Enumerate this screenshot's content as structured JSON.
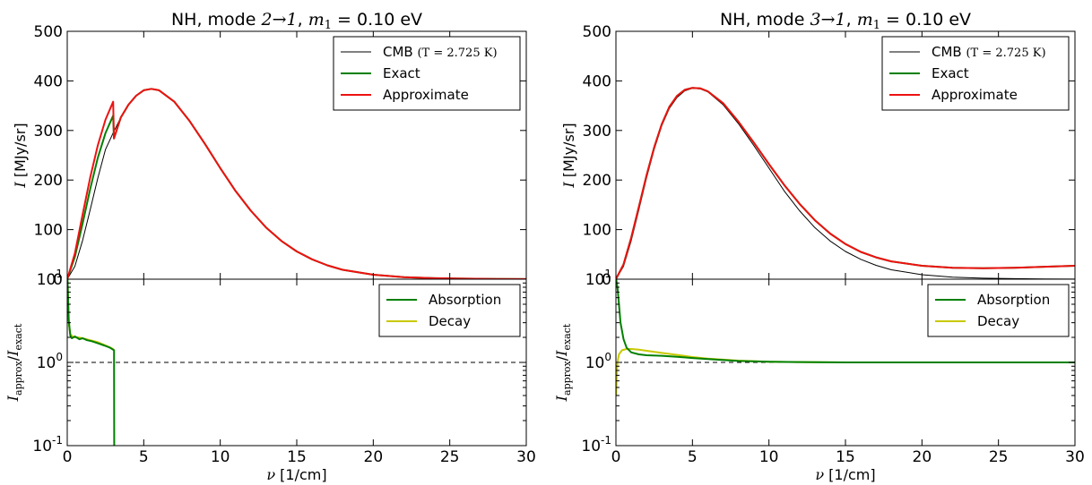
{
  "chart_data": [
    {
      "type": "line",
      "title": "NH, mode 2→1, m1 = 0.10 eV",
      "title_parts": {
        "prefix": "NH, mode ",
        "transition": "2→1",
        "sep": ", ",
        "mass_sym": "m",
        "mass_sub": "1",
        "mass_val": " = 0.10 eV"
      },
      "xlabel": "ν [1/cm]",
      "xlabel_parts": {
        "sym": "ν",
        "unit": " [1/cm]"
      },
      "ylabel": "I [MJy/sr]",
      "ylabel_parts": {
        "sym": "I",
        "unit": " [MJy/sr]"
      },
      "xlim": [
        0,
        30
      ],
      "ylim": [
        0,
        500
      ],
      "xticks": [
        0,
        5,
        10,
        15,
        20,
        25,
        30
      ],
      "yticks": [
        0,
        100,
        200,
        300,
        400,
        500
      ],
      "legend_loc": "top-right",
      "legend": [
        {
          "label": "CMB (T=2.725K)",
          "text": "CMB ",
          "math": "(T = 2.725 K)",
          "color": "#000000"
        },
        {
          "label": "Exact",
          "text": "Exact",
          "math": "",
          "color": "#008000"
        },
        {
          "label": "Approximate",
          "text": "Approximate",
          "math": "",
          "color": "#ee1111"
        }
      ],
      "series": [
        {
          "name": "CMB (T=2.725K)",
          "color": "#000000",
          "x": [
            0,
            0.5,
            1,
            1.5,
            2,
            2.5,
            3,
            3.5,
            4,
            4.5,
            5,
            5.5,
            6,
            7,
            8,
            9,
            10,
            11,
            12,
            13,
            14,
            15,
            16,
            17,
            18,
            20,
            22,
            24,
            26,
            28,
            30
          ],
          "y": [
            0,
            26,
            78,
            140,
            204,
            262,
            295,
            326,
            352,
            370,
            381,
            384,
            381,
            358,
            319,
            273,
            224,
            178,
            138,
            104,
            77,
            56,
            40,
            28,
            19,
            9,
            4,
            2,
            1,
            0.4,
            0.2
          ]
        },
        {
          "name": "Exact",
          "color": "#008000",
          "x": [
            0,
            0.5,
            1,
            1.5,
            2,
            2.5,
            3,
            3.05,
            3.5,
            4,
            4.5,
            5,
            5.5,
            6,
            7,
            8,
            9,
            10,
            11,
            12,
            13,
            14,
            15,
            16,
            17,
            18,
            20,
            22,
            24,
            26,
            28,
            30
          ],
          "y": [
            0,
            45,
            112,
            182,
            245,
            295,
            330,
            284,
            326,
            352,
            370,
            381,
            384,
            381,
            358,
            319,
            273,
            224,
            178,
            138,
            104,
            77,
            56,
            40,
            28,
            19,
            9,
            4,
            2,
            1,
            0.4,
            0.2
          ]
        },
        {
          "name": "Approximate",
          "color": "#ee1111",
          "x": [
            0,
            0.5,
            1,
            1.5,
            2,
            2.5,
            3,
            3.05,
            3.5,
            4,
            4.5,
            5,
            5.5,
            6,
            7,
            8,
            9,
            10,
            11,
            12,
            13,
            14,
            15,
            16,
            17,
            18,
            20,
            22,
            24,
            26,
            28,
            30
          ],
          "y": [
            0,
            52,
            130,
            205,
            270,
            322,
            358,
            284,
            326,
            352,
            370,
            381,
            384,
            381,
            358,
            319,
            273,
            224,
            178,
            138,
            104,
            77,
            56,
            40,
            28,
            19,
            9,
            4,
            2,
            1,
            0.4,
            0.2
          ]
        }
      ],
      "reference_line": {
        "y": 0,
        "style": "dashed"
      }
    },
    {
      "type": "line",
      "ylabel": "I_approx/I_exact",
      "ylabel_parts": {
        "sym": "I",
        "sub_num": "approx",
        "slash": "/",
        "sub_den": "exact"
      },
      "xlabel": "ν [1/cm]",
      "xlabel_parts": {
        "sym": "ν",
        "unit": " [1/cm]"
      },
      "xlim": [
        0,
        30
      ],
      "ylim": [
        0.1,
        10
      ],
      "yscale": "log",
      "xticks": [
        0,
        5,
        10,
        15,
        20,
        25,
        30
      ],
      "yticks": [
        {
          "value": 0.1,
          "base": "10",
          "exp": "-1"
        },
        {
          "value": 1,
          "base": "10",
          "exp": "0"
        },
        {
          "value": 10,
          "base": "10",
          "exp": "1"
        }
      ],
      "legend_loc": "top-right",
      "legend": [
        {
          "label": "Absorption",
          "color": "#008000"
        },
        {
          "label": "Decay",
          "color": "#c8c800"
        }
      ],
      "series": [
        {
          "name": "Decay",
          "color": "#c8c800",
          "x": [
            0.02,
            0.1,
            0.2,
            0.4,
            0.7,
            1,
            1.5,
            2,
            2.5,
            3,
            3.05
          ],
          "y": [
            10,
            3.0,
            2.2,
            2.0,
            2.0,
            1.95,
            1.85,
            1.75,
            1.6,
            1.45,
            1.4
          ]
        },
        {
          "name": "Absorption",
          "color": "#008000",
          "x": [
            0.02,
            0.1,
            0.2,
            0.3,
            0.5,
            0.8,
            1,
            1.3,
            1.6,
            2,
            2.4,
            2.8,
            3,
            3.05,
            3.06,
            3.07
          ],
          "y": [
            10,
            3.2,
            2.1,
            1.95,
            2.05,
            1.9,
            1.95,
            1.85,
            1.8,
            1.7,
            1.6,
            1.5,
            1.42,
            1.4,
            1.4,
            0.1
          ]
        }
      ],
      "reference_line": {
        "y": 1,
        "style": "dashed"
      }
    },
    {
      "type": "line",
      "title": "NH, mode 3→1, m1 = 0.10 eV",
      "title_parts": {
        "prefix": "NH, mode ",
        "transition": "3→1",
        "sep": ", ",
        "mass_sym": "m",
        "mass_sub": "1",
        "mass_val": " = 0.10 eV"
      },
      "xlabel": "ν [1/cm]",
      "xlabel_parts": {
        "sym": "ν",
        "unit": " [1/cm]"
      },
      "ylabel": "I [MJy/sr]",
      "ylabel_parts": {
        "sym": "I",
        "unit": " [MJy/sr]"
      },
      "xlim": [
        0,
        30
      ],
      "ylim": [
        0,
        500
      ],
      "xticks": [
        0,
        5,
        10,
        15,
        20,
        25,
        30
      ],
      "yticks": [
        0,
        100,
        200,
        300,
        400,
        500
      ],
      "legend_loc": "top-right",
      "legend": [
        {
          "label": "CMB (T=2.725K)",
          "text": "CMB ",
          "math": "(T = 2.725 K)",
          "color": "#000000"
        },
        {
          "label": "Exact",
          "text": "Exact",
          "math": "",
          "color": "#008000"
        },
        {
          "label": "Approximate",
          "text": "Approximate",
          "math": "",
          "color": "#ee1111"
        }
      ],
      "series": [
        {
          "name": "CMB (T=2.725K)",
          "color": "#000000",
          "x": [
            0,
            0.5,
            1,
            1.5,
            2,
            2.5,
            3,
            3.5,
            4,
            4.5,
            5,
            5.5,
            6,
            7,
            8,
            9,
            10,
            11,
            12,
            13,
            14,
            15,
            16,
            17,
            18,
            20,
            22,
            24,
            26,
            28,
            30
          ],
          "y": [
            0,
            26,
            78,
            140,
            204,
            262,
            310,
            345,
            367,
            380,
            385,
            384,
            378,
            352,
            314,
            270,
            224,
            178,
            138,
            104,
            77,
            56,
            40,
            28,
            19,
            9,
            4,
            2,
            1,
            0.4,
            0.2
          ]
        },
        {
          "name": "Exact",
          "color": "#008000",
          "x": [
            0,
            0.5,
            1,
            1.5,
            2,
            2.5,
            3,
            3.5,
            4,
            4.5,
            5,
            5.5,
            6,
            7,
            8,
            9,
            10,
            11,
            12,
            13,
            14,
            15,
            16,
            17,
            18,
            20,
            22,
            24,
            26,
            28,
            30
          ],
          "y": [
            0,
            30,
            84,
            146,
            209,
            266,
            313,
            348,
            370,
            382,
            386,
            385,
            379,
            355,
            318,
            276,
            232,
            190,
            152,
            119,
            92,
            71,
            55,
            44,
            36,
            27,
            23,
            22,
            23,
            25,
            27
          ]
        },
        {
          "name": "Approximate",
          "color": "#ee1111",
          "x": [
            0,
            0.5,
            1,
            1.5,
            2,
            2.5,
            3,
            3.5,
            4,
            4.5,
            5,
            5.5,
            6,
            7,
            8,
            9,
            10,
            11,
            12,
            13,
            14,
            15,
            16,
            17,
            18,
            20,
            22,
            24,
            26,
            28,
            30
          ],
          "y": [
            0,
            30,
            84,
            146,
            209,
            266,
            313,
            348,
            370,
            382,
            386,
            385,
            379,
            355,
            318,
            276,
            232,
            190,
            152,
            119,
            92,
            71,
            55,
            44,
            36,
            27,
            23,
            22,
            23,
            25,
            27
          ]
        }
      ],
      "reference_line": {
        "y": 0,
        "style": "dashed"
      }
    },
    {
      "type": "line",
      "ylabel": "I_approx/I_exact",
      "ylabel_parts": {
        "sym": "I",
        "sub_num": "approx",
        "slash": "/",
        "sub_den": "exact"
      },
      "xlabel": "ν [1/cm]",
      "xlabel_parts": {
        "sym": "ν",
        "unit": " [1/cm]"
      },
      "xlim": [
        0,
        30
      ],
      "ylim": [
        0.1,
        10
      ],
      "yscale": "log",
      "xticks": [
        0,
        5,
        10,
        15,
        20,
        25,
        30
      ],
      "yticks": [
        {
          "value": 0.1,
          "base": "10",
          "exp": "-1"
        },
        {
          "value": 1,
          "base": "10",
          "exp": "0"
        },
        {
          "value": 10,
          "base": "10",
          "exp": "1"
        }
      ],
      "legend_loc": "top-right",
      "legend": [
        {
          "label": "Absorption",
          "color": "#008000"
        },
        {
          "label": "Decay",
          "color": "#c8c800"
        }
      ],
      "series": [
        {
          "name": "Decay",
          "color": "#c8c800",
          "x": [
            0.02,
            0.05,
            0.1,
            0.2,
            0.4,
            0.7,
            1,
            1.5,
            2,
            3,
            4,
            5,
            6,
            8,
            10,
            12,
            15,
            20,
            25,
            30
          ],
          "y": [
            0.4,
            0.7,
            1.0,
            1.25,
            1.4,
            1.45,
            1.45,
            1.42,
            1.38,
            1.3,
            1.23,
            1.16,
            1.11,
            1.05,
            1.02,
            1.01,
            1.0,
            1.0,
            1.0,
            1.0
          ]
        },
        {
          "name": "Absorption",
          "color": "#008000",
          "x": [
            0.02,
            0.1,
            0.2,
            0.3,
            0.5,
            0.7,
            1,
            1.5,
            2,
            3,
            4,
            5,
            6,
            8,
            10,
            12,
            15,
            20,
            25,
            30
          ],
          "y": [
            10,
            8.0,
            5.0,
            3.0,
            1.9,
            1.5,
            1.32,
            1.25,
            1.22,
            1.2,
            1.17,
            1.13,
            1.1,
            1.04,
            1.02,
            1.01,
            1.0,
            1.0,
            1.0,
            1.0
          ]
        }
      ],
      "reference_line": {
        "y": 1,
        "style": "dashed"
      }
    }
  ]
}
